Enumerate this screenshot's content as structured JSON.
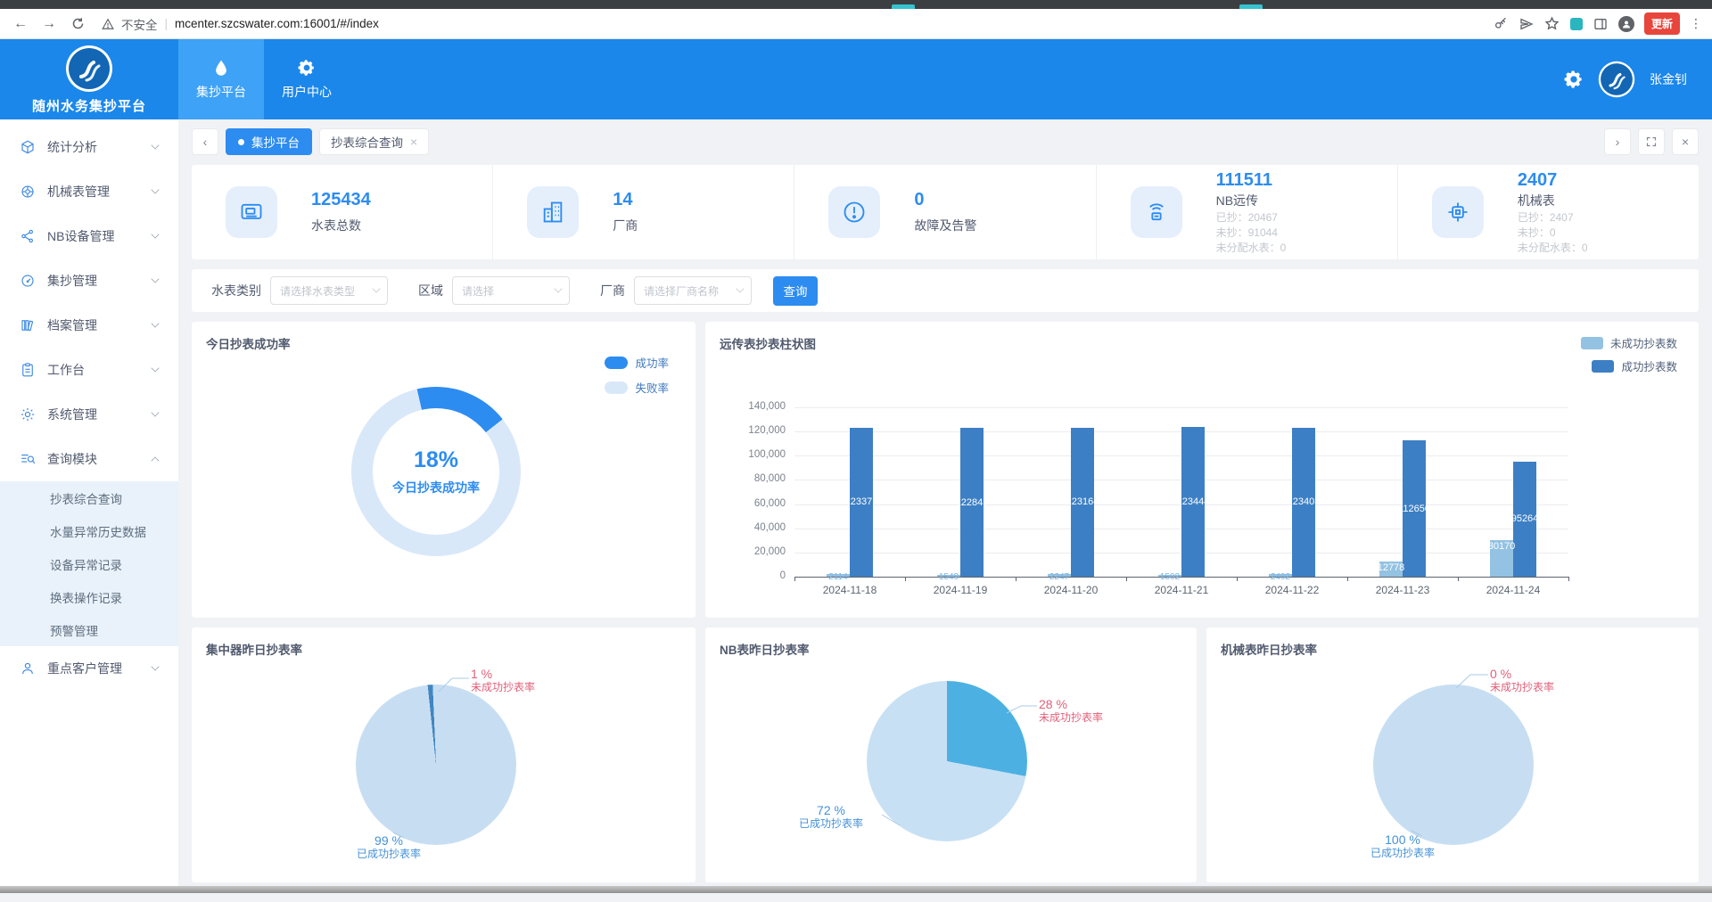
{
  "browser": {
    "security_label": "不安全",
    "url": "mcenter.szcswater.com:16001/#/index",
    "update_button": "更新"
  },
  "header": {
    "app_title": "随州水务集抄平台",
    "nav": [
      {
        "label": "集抄平台"
      },
      {
        "label": "用户中心"
      }
    ],
    "user_name": "张金钊"
  },
  "tabs_bar": {
    "platform_tab": "集抄平台",
    "page_tab": "抄表综合查询"
  },
  "sidebar": {
    "items": [
      {
        "label": "统计分析"
      },
      {
        "label": "机械表管理"
      },
      {
        "label": "NB设备管理"
      },
      {
        "label": "集抄管理"
      },
      {
        "label": "档案管理"
      },
      {
        "label": "工作台"
      },
      {
        "label": "系统管理"
      },
      {
        "label": "查询模块"
      },
      {
        "label": "重点客户管理"
      }
    ],
    "query_submenu": [
      "抄表综合查询",
      "水量异常历史数据",
      "设备异常记录",
      "换表操作记录",
      "预警管理"
    ]
  },
  "stat_cards": [
    {
      "value": "125434",
      "label": "水表总数"
    },
    {
      "value": "14",
      "label": "厂商"
    },
    {
      "value": "0",
      "label": "故障及告警"
    },
    {
      "value": "111511",
      "label": "NB远传",
      "lines": [
        "已抄：20467",
        "未抄：91044",
        "未分配水表：0"
      ]
    },
    {
      "value": "2407",
      "label": "机械表",
      "lines": [
        "已抄：2407",
        "未抄：0",
        "未分配水表：0"
      ]
    }
  ],
  "filters": {
    "meter_type_label": "水表类别",
    "meter_type_placeholder": "请选择水表类型",
    "region_label": "区域",
    "region_placeholder": "请选择",
    "vendor_label": "厂商",
    "vendor_placeholder": "请选择厂商名称",
    "search_button": "查询"
  },
  "colors": {
    "header_blue": "#1b87ea",
    "accent_blue": "#2d8cf0",
    "bar_dark": "#3d7fc4",
    "bar_light": "#93c2e2",
    "pie_light": "#c7def2",
    "fail_red": "#e0607a"
  },
  "chart_data": [
    {
      "id": "today-success-donut",
      "type": "pie",
      "variant": "donut",
      "title": "今日抄表成功率",
      "center_value": "18%",
      "center_label": "今日抄表成功率",
      "rotation": -13,
      "legend_position": "top-right",
      "slices": [
        {
          "name": "成功率",
          "value": 18,
          "color": "#2d8cf0"
        },
        {
          "name": "失败率",
          "value": 82,
          "color": "#d9e8f9"
        }
      ]
    },
    {
      "id": "remote-meter-bar",
      "type": "bar",
      "title": "远传表抄表柱状图",
      "categories": [
        "2024-11-18",
        "2024-11-19",
        "2024-11-20",
        "2024-11-21",
        "2024-11-22",
        "2024-11-23",
        "2024-11-24"
      ],
      "series": [
        {
          "name": "未成功抄表数",
          "color": "#93c2e2",
          "values": [
            2114,
            1549,
            2247,
            1502,
            2402,
            12778,
            30170
          ]
        },
        {
          "name": "成功抄表数",
          "color": "#3d7fc4",
          "values": [
            123371,
            122843,
            123164,
            123444,
            123403,
            112650,
            95264
          ]
        }
      ],
      "ylim": [
        0,
        140000
      ],
      "ytick_step": 20000,
      "grid": true,
      "legend_position": "top-right"
    },
    {
      "id": "concentrator-pie",
      "type": "pie",
      "title": "集中器昨日抄表率",
      "rotation": -6,
      "slices": [
        {
          "name": "未成功抄表率",
          "value": 1,
          "color": "#4186c0"
        },
        {
          "name": "已成功抄表率",
          "value": 99,
          "color": "#c7def2"
        }
      ],
      "labels": {
        "fail_pct": "1 %",
        "fail_name": "未成功抄表率",
        "success_pct": "99 %",
        "success_name": "已成功抄表率"
      }
    },
    {
      "id": "nb-meter-pie",
      "type": "pie",
      "title": "NB表昨日抄表率",
      "rotation": 0,
      "slices": [
        {
          "name": "未成功抄表率",
          "value": 28,
          "color": "#4cb1e2"
        },
        {
          "name": "已成功抄表率",
          "value": 72,
          "color": "#c7e0f4"
        }
      ],
      "labels": {
        "fail_pct": "28 %",
        "fail_name": "未成功抄表率",
        "success_pct": "72 %",
        "success_name": "已成功抄表率"
      }
    },
    {
      "id": "mech-meter-pie",
      "type": "pie",
      "title": "机械表昨日抄表率",
      "rotation": 0,
      "slices": [
        {
          "name": "未成功抄表率",
          "value": 0,
          "color": "#4186c0"
        },
        {
          "name": "已成功抄表率",
          "value": 100,
          "color": "#c7def2"
        }
      ],
      "labels": {
        "fail_pct": "0 %",
        "fail_name": "未成功抄表率",
        "success_pct": "100 %",
        "success_name": "已成功抄表率"
      }
    }
  ]
}
